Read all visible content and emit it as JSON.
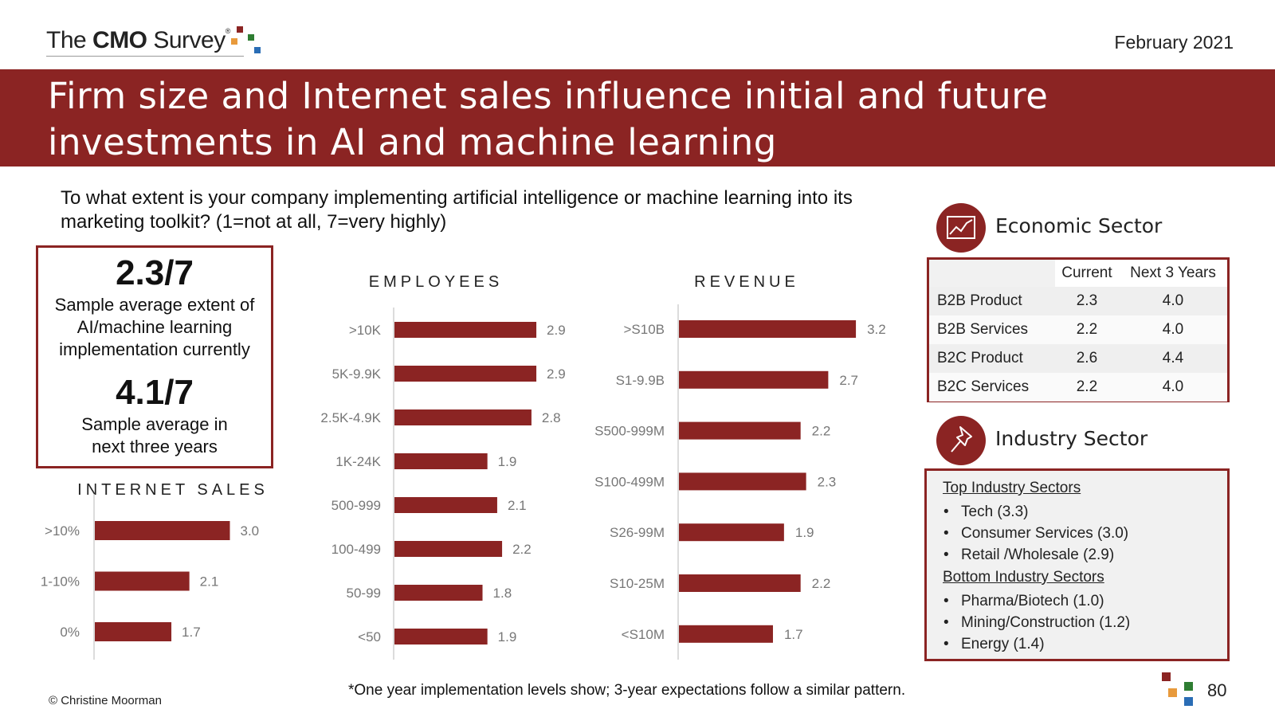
{
  "header": {
    "logo": {
      "prefix": "The ",
      "bold": "CMO",
      "suffix": " Survey",
      "registered": "®",
      "dot_colors": [
        "#8b2423",
        "#e89a3c",
        "#2e7d32",
        "#2a6db5"
      ]
    },
    "date": "February 2021"
  },
  "title": "Firm size and Internet sales influence initial and future investments in AI and machine learning",
  "question": "To what extent is your company implementing artificial intelligence or machine learning into its marketing toolkit? (1=not at all, 7=very highly)",
  "summary": {
    "current_value": "2.3/7",
    "current_desc": "Sample average extent of AI/machine learning implementation currently",
    "future_value": "4.1/7",
    "future_desc": "Sample average in next three years"
  },
  "colors": {
    "accent": "#8b2423",
    "bar": "#8b2423"
  },
  "chart_data": [
    {
      "id": "internet",
      "type": "bar",
      "orientation": "horizontal",
      "title": "INTERNET SALES",
      "categories": [
        ">10%",
        "1-10%",
        "0%"
      ],
      "values": [
        3.0,
        2.1,
        1.7
      ],
      "labels": [
        "3.0",
        "2.1",
        "1.7"
      ],
      "xlim": [
        0,
        3.2
      ],
      "grid": false,
      "legend": "none"
    },
    {
      "id": "employees",
      "type": "bar",
      "orientation": "horizontal",
      "title": "EMPLOYEES",
      "categories": [
        ">10K",
        "5K-9.9K",
        "2.5K-4.9K",
        "1K-24K",
        "500-999",
        "100-499",
        "50-99",
        "<50"
      ],
      "values": [
        2.9,
        2.9,
        2.8,
        1.9,
        2.1,
        2.2,
        1.8,
        1.9
      ],
      "labels": [
        "2.9",
        "2.9",
        "2.8",
        "1.9",
        "2.1",
        "2.2",
        "1.8",
        "1.9"
      ],
      "xlim": [
        0,
        3.2
      ],
      "grid": false,
      "legend": "none"
    },
    {
      "id": "revenue",
      "type": "bar",
      "orientation": "horizontal",
      "title": "REVENUE",
      "categories": [
        ">S10B",
        "S1-9.9B",
        "S500-999M",
        "S100-499M",
        "S26-99M",
        "S10-25M",
        "<S10M"
      ],
      "values": [
        3.2,
        2.7,
        2.2,
        2.3,
        1.9,
        2.2,
        1.7
      ],
      "labels": [
        "3.2",
        "2.7",
        "2.2",
        "2.3",
        "1.9",
        "2.2",
        "1.7"
      ],
      "xlim": [
        0,
        3.2
      ],
      "grid": false,
      "legend": "none"
    }
  ],
  "economic": {
    "label": "Economic Sector",
    "icon": "line-chart-icon",
    "columns": [
      "Current",
      "Next 3 Years"
    ],
    "rows": [
      {
        "name": "B2B Product",
        "current": "2.3",
        "next": "4.0"
      },
      {
        "name": "B2B Services",
        "current": "2.2",
        "next": "4.0"
      },
      {
        "name": "B2C Product",
        "current": "2.6",
        "next": "4.4"
      },
      {
        "name": "B2C Services",
        "current": "2.2",
        "next": "4.0"
      }
    ]
  },
  "industry": {
    "label": "Industry Sector",
    "icon": "pushpin-icon",
    "top_heading": "Top Industry Sectors",
    "top": [
      "Tech (3.3)",
      "Consumer Services (3.0)",
      "Retail /Wholesale (2.9)"
    ],
    "bottom_heading": "Bottom Industry Sectors",
    "bottom": [
      "Pharma/Biotech (1.0)",
      "Mining/Construction (1.2)",
      "Energy (1.4)"
    ]
  },
  "footer": {
    "note": "*One year implementation levels show; 3-year expectations follow a similar pattern.",
    "copyright": "© Christine Moorman",
    "page": "80"
  }
}
